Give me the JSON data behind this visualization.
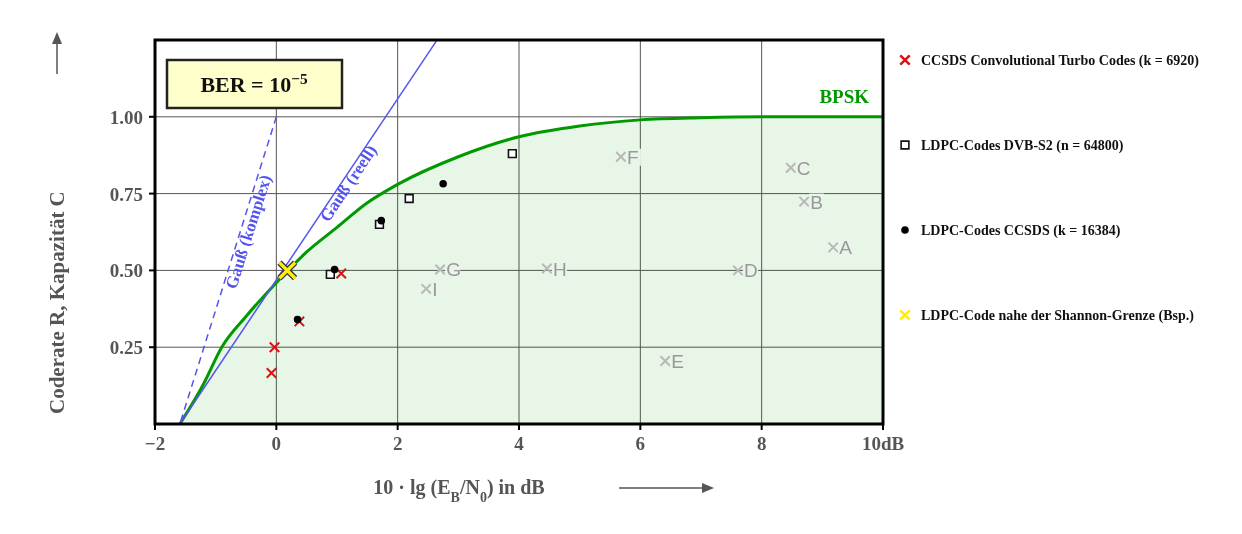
{
  "chart_data": {
    "type": "scatter",
    "xlabel": "10 · lg (E$_{B}$/N$_{0}$) in dB",
    "ylabel": "Coderate R, Kapazität C",
    "xlim": [
      -2,
      10
    ],
    "ylim": [
      0,
      1.25
    ],
    "xticks": [
      {
        "value": -2,
        "label": "−2"
      },
      0,
      2,
      4,
      6,
      8,
      {
        "value": 10,
        "label": "10dB"
      }
    ],
    "yticks": [
      0.25,
      {
        "value": 0.5,
        "label": "0.50"
      },
      0.75,
      {
        "value": 1,
        "label": "1.00"
      }
    ],
    "grid": true,
    "legend": "right",
    "series": [
      {
        "name": "BPSK",
        "type": "area",
        "color": "#009900",
        "x": [
          -1.59,
          -1.2,
          -0.9,
          -0.5,
          0,
          0.5,
          1,
          1.5,
          2,
          3,
          4,
          5,
          6,
          7,
          8,
          10
        ],
        "values": [
          0,
          0.13,
          0.25,
          0.35,
          0.46,
          0.56,
          0.64,
          0.72,
          0.78,
          0.87,
          0.935,
          0.97,
          0.99,
          0.997,
          1.0,
          1.0
        ]
      },
      {
        "name": "Gauß (reell)",
        "type": "line",
        "color": "#5555ee",
        "x": [
          -1.59,
          2.64
        ],
        "values": [
          0,
          1.247
        ]
      },
      {
        "name": "Gauß (komplex)",
        "type": "line",
        "line_style": "dashed",
        "color": "#5555ee",
        "x": [
          -1.59,
          0
        ],
        "values": [
          0,
          1.0
        ]
      },
      {
        "marker": "cross",
        "color": "#b8b8b8",
        "x": [
          9.18,
          8.7,
          8.48,
          7.61,
          6.41,
          5.68,
          2.7,
          4.46,
          2.47
        ],
        "values": [
          0.575,
          0.724,
          0.834,
          0.5,
          0.205,
          0.87,
          0.503,
          0.506,
          0.44
        ]
      },
      {
        "name": "CCSDS  Convolutional Turbo Codes (k = 6920)",
        "marker": "cross",
        "color": "#dd1111",
        "x": [
          1.07,
          0.38,
          -0.03,
          -0.08
        ],
        "values": [
          0.49,
          0.334,
          0.25,
          0.166
        ]
      },
      {
        "name": "LDPC-Codes DVB-S2 (n = 64800)",
        "marker": "square",
        "color": "#111111",
        "x": [
          0.89,
          1.7,
          2.19,
          3.89
        ],
        "values": [
          0.487,
          0.65,
          0.734,
          0.88
        ]
      },
      {
        "name": "LDPC-Codes CCSDS (k = 16384)",
        "marker": "circle",
        "color": "#000000",
        "x": [
          0.96,
          0.35,
          1.73,
          2.75
        ],
        "values": [
          0.503,
          0.34,
          0.662,
          0.782
        ]
      },
      {
        "name": "LDPC-Code nahe der Shannon-Grenze  (Bsp.)",
        "marker": "cross",
        "color": "#ffee00",
        "x": [
          0.18
        ],
        "values": [
          0.5
        ]
      }
    ],
    "annotations": [
      "BER = 10$^{−5}$",
      {
        "text": "A",
        "x": 9.18,
        "y": 0.575
      },
      {
        "text": "B",
        "x": 8.7,
        "y": 0.724
      },
      {
        "text": "C",
        "x": 8.48,
        "y": 0.834
      },
      {
        "text": "D",
        "x": 7.61,
        "y": 0.5
      },
      {
        "text": "E",
        "x": 6.41,
        "y": 0.205
      },
      {
        "text": "F",
        "x": 5.68,
        "y": 0.87
      },
      {
        "text": "G",
        "x": 2.7,
        "y": 0.503
      },
      {
        "text": "H",
        "x": 4.46,
        "y": 0.506
      },
      {
        "text": "I",
        "x": 2.47,
        "y": 0.44
      }
    ]
  }
}
